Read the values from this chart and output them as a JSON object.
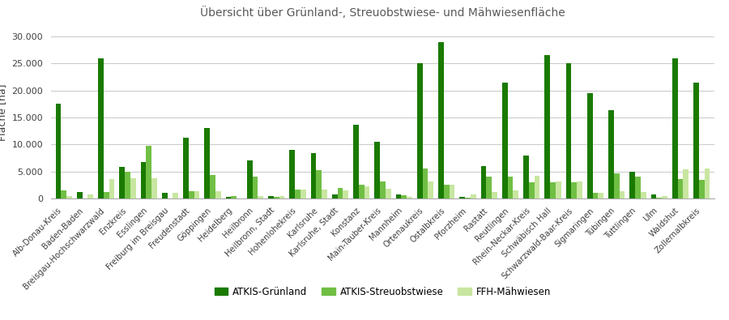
{
  "title": "Übersicht über Grünland-, Streuobstwiese- und Mähwiesenfläche",
  "ylabel": "Fläche [ha]",
  "categories": [
    "Alb-Donau-Kreis",
    "Baden-Baden",
    "Breisgau-Hochschwarzwald",
    "Enzkreis",
    "Esslingen",
    "Freiburg im Breisgau",
    "Freudenstadt",
    "Göppingen",
    "Heidelberg",
    "Heilbronn",
    "Heilbronn, Stadt",
    "Hohenlohekreis",
    "Karlsruhe",
    "Karlsruhe, Stadt",
    "Konstanz",
    "Main-Tauber-Kreis",
    "Mannheim",
    "Ortenaukreis",
    "Ostalbkreis",
    "Pforzheim",
    "Rastatt",
    "Reutlingen",
    "Rhein-Neckar-Kreis",
    "Schwäbisch Hall",
    "Schwarzwald-Baar-Kreis",
    "Sigmaringen",
    "Tübingen",
    "Tuttlingen",
    "Ulm",
    "Waldshut",
    "Zollernalbkreis"
  ],
  "series": {
    "ATKIS-Grünland": [
      17500,
      1200,
      26000,
      5800,
      6700,
      1000,
      11300,
      13100,
      350,
      7000,
      400,
      9000,
      8400,
      800,
      13700,
      10500,
      700,
      25000,
      29000,
      350,
      6000,
      21500,
      8000,
      26500,
      25000,
      19500,
      16300,
      5000,
      800,
      26000,
      21500
    ],
    "ATKIS-Streuobstwiese": [
      1500,
      0,
      1200,
      5000,
      9700,
      0,
      1400,
      4300,
      400,
      4000,
      300,
      1700,
      5200,
      2000,
      2600,
      3200,
      600,
      5600,
      2600,
      200,
      4000,
      4000,
      3000,
      3000,
      3000,
      1100,
      4700,
      4000,
      200,
      3600,
      3500
    ],
    "FFH-Mähwiesen": [
      500,
      800,
      3600,
      3800,
      3800,
      1100,
      1300,
      1400,
      0,
      400,
      500,
      1700,
      1700,
      1500,
      2200,
      1800,
      300,
      3200,
      2600,
      700,
      1200,
      1500,
      4200,
      3100,
      3200,
      1100,
      1300,
      1200,
      500,
      5400,
      5600
    ]
  },
  "colors": {
    "ATKIS-Grünland": "#1a7a00",
    "ATKIS-Streuobstwiese": "#70bf44",
    "FFH-Mähwiesen": "#c8e6a0"
  },
  "ylim": [
    0,
    32000
  ],
  "yticks": [
    0,
    5000,
    10000,
    15000,
    20000,
    25000,
    30000
  ],
  "background_color": "#ffffff",
  "grid_color": "#cccccc",
  "title_color": "#595959",
  "legend_labels": [
    "ATKIS-Grünland",
    "ATKIS-Streuobstwiese",
    "FFH-Mähwiesen"
  ]
}
